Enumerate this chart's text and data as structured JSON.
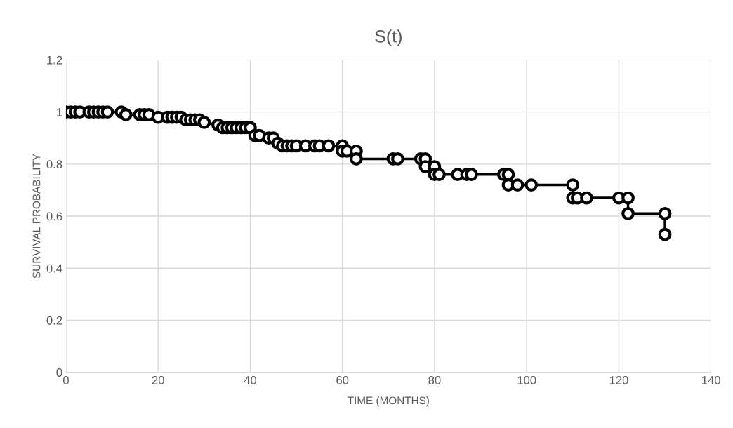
{
  "chart_data": {
    "type": "line",
    "title": "S(t)",
    "xlabel": "TIME (MONTHS)",
    "ylabel": "SURVIVAL PROBABILITY",
    "x": [
      0,
      1,
      2,
      3,
      5,
      6,
      7,
      8,
      9,
      12,
      13,
      16,
      17,
      18,
      20,
      22,
      23,
      24,
      25,
      26,
      27,
      28,
      29,
      30,
      33,
      34,
      35,
      36,
      37,
      38,
      39,
      40,
      41,
      42,
      44,
      45,
      46,
      47,
      48,
      49,
      50,
      52,
      54,
      55,
      57,
      60,
      60,
      61,
      63,
      63,
      71,
      72,
      77,
      78,
      78,
      80,
      80,
      81,
      85,
      87,
      88,
      95,
      96,
      96,
      98,
      101,
      110,
      110,
      111,
      113,
      120,
      122,
      122,
      130,
      130
    ],
    "series": [
      {
        "color": "#000000",
        "values": [
          1,
          1,
          1,
          1,
          1,
          1,
          1,
          1,
          1,
          1,
          0.99,
          0.99,
          0.99,
          0.99,
          0.98,
          0.98,
          0.98,
          0.98,
          0.98,
          0.97,
          0.97,
          0.97,
          0.97,
          0.96,
          0.95,
          0.94,
          0.94,
          0.94,
          0.94,
          0.94,
          0.94,
          0.94,
          0.91,
          0.91,
          0.9,
          0.9,
          0.88,
          0.87,
          0.87,
          0.87,
          0.87,
          0.87,
          0.87,
          0.87,
          0.87,
          0.87,
          0.85,
          0.85,
          0.85,
          0.82,
          0.82,
          0.82,
          0.82,
          0.82,
          0.79,
          0.79,
          0.76,
          0.76,
          0.76,
          0.76,
          0.76,
          0.76,
          0.76,
          0.72,
          0.72,
          0.72,
          0.72,
          0.67,
          0.67,
          0.67,
          0.67,
          0.67,
          0.61,
          0.61,
          0.53
        ]
      }
    ],
    "xlim": [
      0,
      140
    ],
    "xticks": [
      0,
      20,
      40,
      60,
      80,
      100,
      120,
      140
    ],
    "ylim": [
      0,
      1.2
    ],
    "yticks": [
      0,
      0.2,
      0.4,
      0.6,
      0.8,
      1,
      1.2
    ],
    "grid": true,
    "marker": "circle",
    "line_style": "solid",
    "legend": false
  }
}
